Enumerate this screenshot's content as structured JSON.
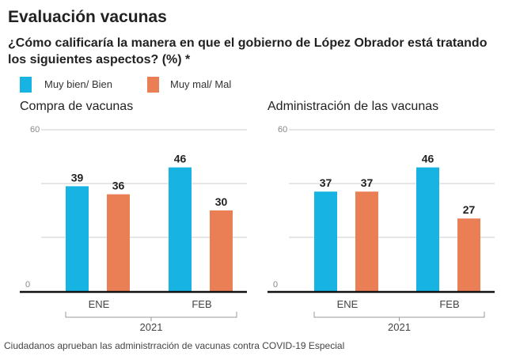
{
  "title": "Evaluación vacunas",
  "subtitle": "¿Cómo calificaría la manera en que el gobierno de López Obrador está tratando los siguientes aspectos? (%) *",
  "legend": [
    {
      "label": "Muy bien/ Bien",
      "color": "#16b3e3"
    },
    {
      "label": "Muy mal/ Mal",
      "color": "#ea7e55"
    }
  ],
  "caption": "Ciudadanos aprueban las administrración de vacunas contra COVID-19 Especial",
  "chart_data": [
    {
      "type": "bar",
      "title": "Compra de vacunas",
      "categories": [
        "ENE",
        "FEB"
      ],
      "group_label": "2021",
      "ylim": [
        0,
        60
      ],
      "yticks": [
        "0",
        "60"
      ],
      "grid": true,
      "series": [
        {
          "name": "Muy bien/ Bien",
          "values": [
            39,
            46
          ]
        },
        {
          "name": "Muy mal/ Mal",
          "values": [
            36,
            30
          ]
        }
      ]
    },
    {
      "type": "bar",
      "title": "Administración de las vacunas",
      "categories": [
        "ENE",
        "FEB"
      ],
      "group_label": "2021",
      "ylim": [
        0,
        60
      ],
      "yticks": [
        "0",
        "60"
      ],
      "grid": true,
      "series": [
        {
          "name": "Muy bien/ Bien",
          "values": [
            37,
            46
          ]
        },
        {
          "name": "Muy mal/ Mal",
          "values": [
            37,
            27
          ]
        }
      ]
    }
  ]
}
